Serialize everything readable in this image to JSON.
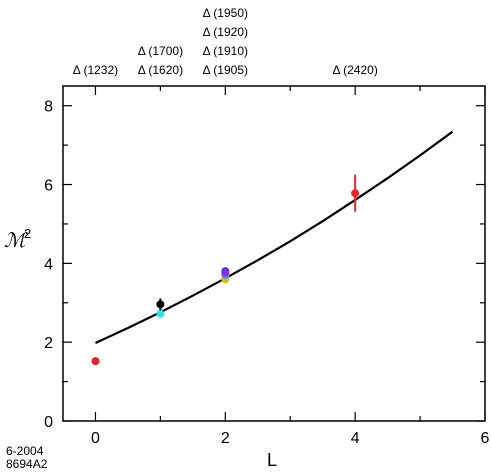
{
  "chart_data": {
    "type": "scatter",
    "xlabel": "L",
    "ylabel": "ℳ",
    "ylabel_superscript": "2",
    "xlim": [
      -0.5,
      6
    ],
    "ylim": [
      0,
      8.5
    ],
    "x_ticks": [
      0,
      2,
      4,
      6
    ],
    "y_ticks": [
      0,
      2,
      4,
      6,
      8
    ],
    "grid": false,
    "points": [
      {
        "x": 0,
        "y": 1.52,
        "color": "#e8232a"
      },
      {
        "x": 1,
        "y": 2.72,
        "color": "#25e4ee"
      },
      {
        "x": 1,
        "y": 2.96,
        "err": 0.15,
        "color": "#000000"
      },
      {
        "x": 2,
        "y": 3.6,
        "color": "#f5b400"
      },
      {
        "x": 2,
        "y": 3.7,
        "color": "#2aa8e0"
      },
      {
        "x": 2,
        "y": 3.8,
        "color": "#2232d8"
      },
      {
        "x": 2,
        "y": 3.76,
        "color": "#8a2be2"
      },
      {
        "x": 4,
        "y": 5.78,
        "err": 0.47,
        "color": "#e8232a"
      }
    ],
    "curve": {
      "x": [
        0,
        0.5,
        1,
        1.5,
        2,
        2.5,
        3,
        3.5,
        4,
        4.5,
        5,
        5.5
      ],
      "y": [
        1.98,
        2.36,
        2.76,
        3.18,
        3.62,
        4.08,
        4.56,
        5.07,
        5.61,
        6.16,
        6.74,
        7.34
      ],
      "color": "#000000"
    },
    "state_labels": [
      {
        "x": 0,
        "lines": [
          "Δ (1232)"
        ]
      },
      {
        "x": 1,
        "lines": [
          "Δ (1700)",
          "Δ (1620)"
        ]
      },
      {
        "x": 2,
        "lines": [
          "Δ (1950)",
          "Δ (1920)",
          "Δ (1910)",
          "Δ (1905)"
        ]
      },
      {
        "x": 4,
        "lines": [
          "Δ (2420)"
        ]
      }
    ]
  },
  "corner_note": [
    "6-2004",
    "8694A2"
  ]
}
